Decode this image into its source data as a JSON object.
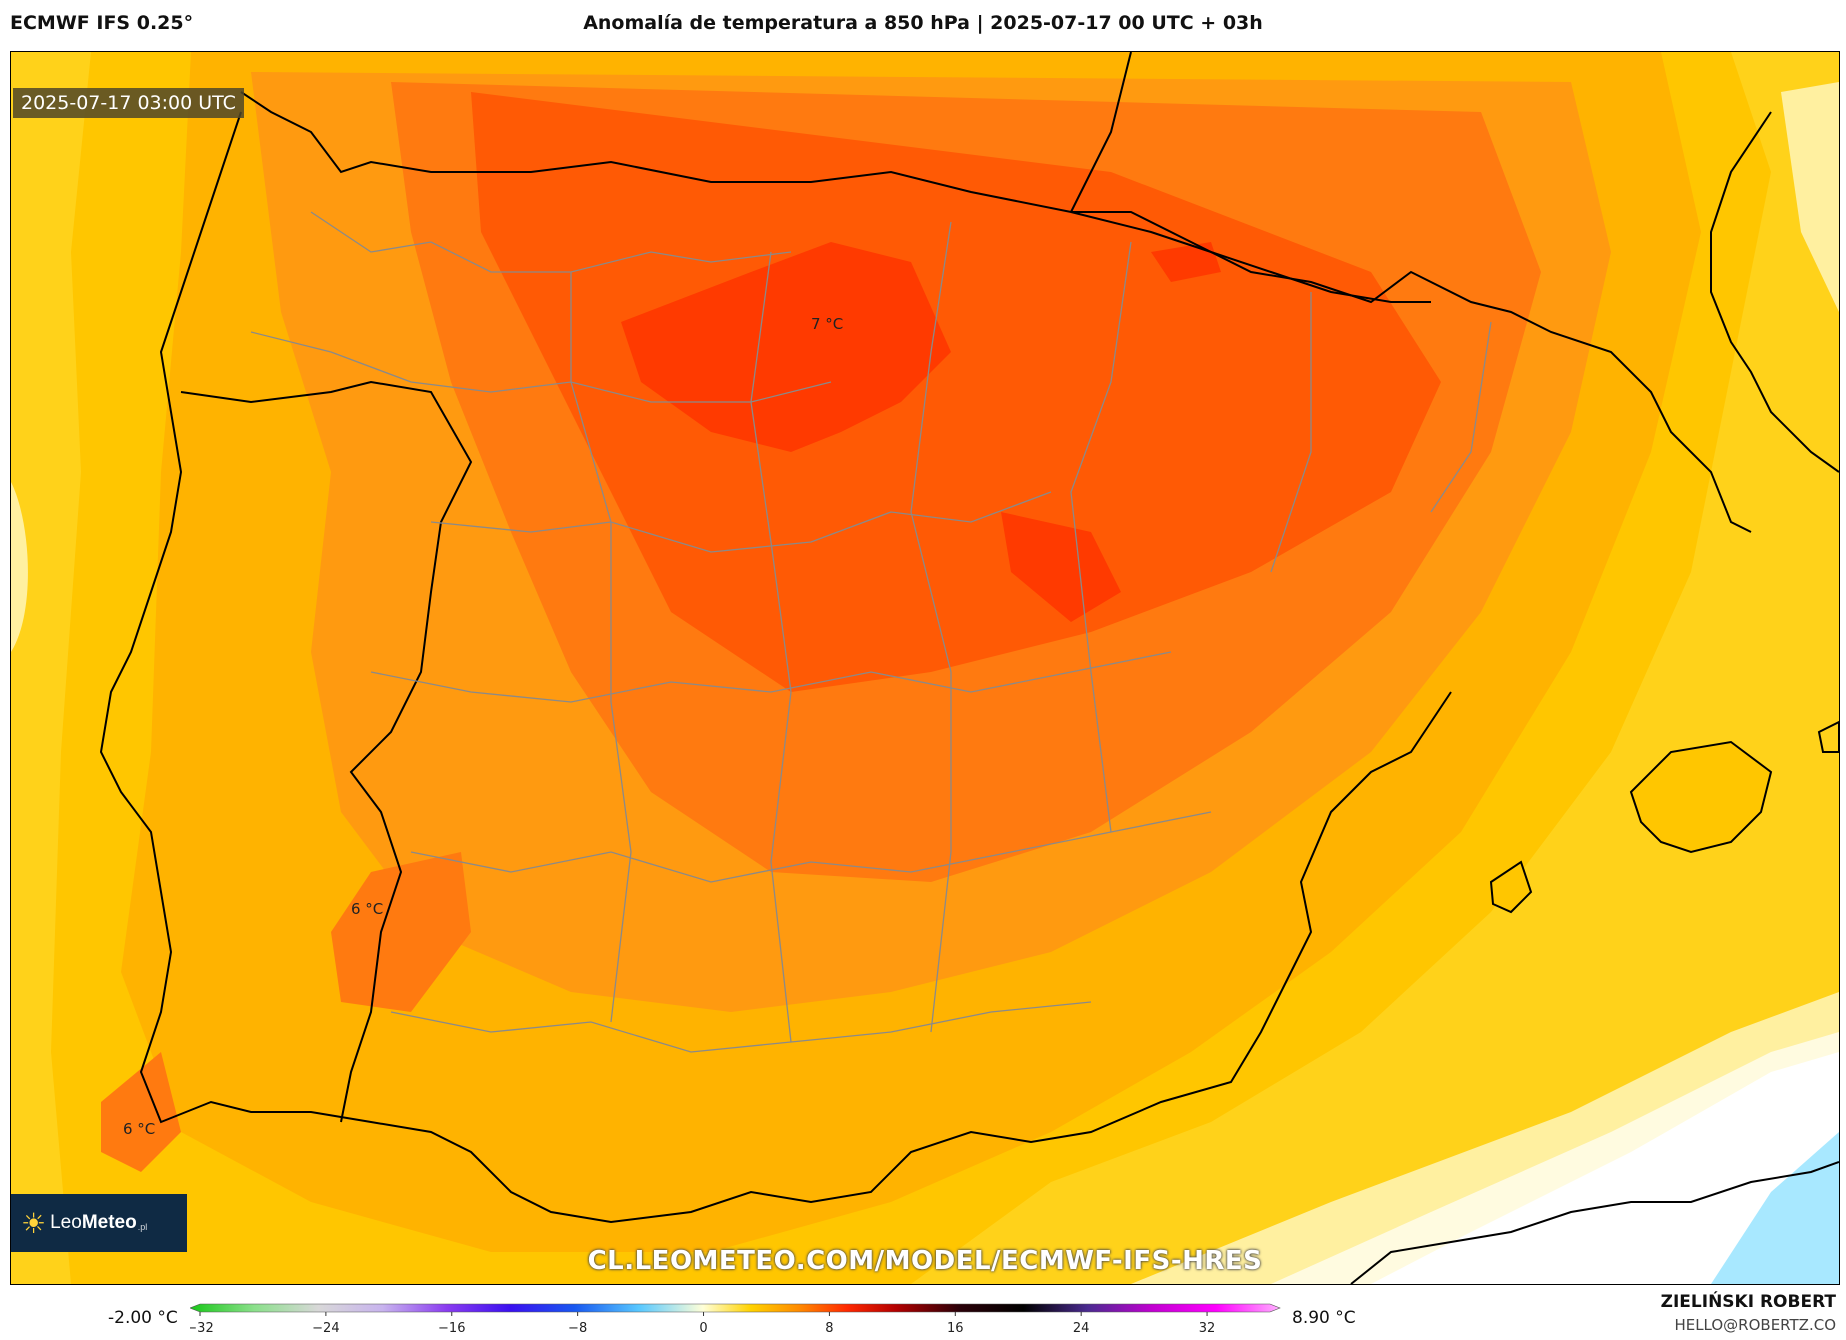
{
  "header": {
    "model": "ECMWF IFS 0.25°",
    "title": "Anomalía de temperatura a 850 hPa | 2025-07-17 00 UTC + 03h"
  },
  "map": {
    "valid_time": "2025-07-17 03:00 UTC",
    "contour_labels": [
      "7 °C",
      "6 °C",
      "6 °C"
    ],
    "watermark": "CL.LEOMETEO.COM/MODEL/ECMWF-IFS-HRES",
    "logo": {
      "name_light": "Leo",
      "name_bold": "Meteo",
      "tld": ".pl",
      "icon": "sun-icon"
    },
    "fill_colors": {
      "deep_red": "#ff3a00",
      "red_orange": "#ff5a05",
      "orange_red": "#ff7a10",
      "orange": "#ff9a10",
      "amber": "#ffb300",
      "gold": "#ffc600",
      "yellow": "#ffd21a",
      "light_yellow": "#fff0a0",
      "pale": "#fffbe0",
      "white": "#ffffff",
      "cyan": "#a8e8ff"
    }
  },
  "colorbar": {
    "min_label": "-2.00 °C",
    "max_label": "8.90 °C",
    "ticks": [
      "−32",
      "−24",
      "−16",
      "−8",
      "0",
      "8",
      "16",
      "24",
      "32"
    ],
    "tick_values": [
      -32,
      -24,
      -16,
      -8,
      0,
      8,
      16,
      24,
      32
    ],
    "range": [
      -32,
      36
    ],
    "stops": [
      {
        "v": -32,
        "c": "#18c818"
      },
      {
        "v": -28,
        "c": "#8be08b"
      },
      {
        "v": -24,
        "c": "#d8d8d8"
      },
      {
        "v": -20,
        "c": "#c8b4ee"
      },
      {
        "v": -16,
        "c": "#8a3cf0"
      },
      {
        "v": -12,
        "c": "#3a10f0"
      },
      {
        "v": -8,
        "c": "#1858f0"
      },
      {
        "v": -4,
        "c": "#58c8ff"
      },
      {
        "v": 0,
        "c": "#ffffd8"
      },
      {
        "v": 3,
        "c": "#ffd200"
      },
      {
        "v": 6,
        "c": "#ff8a00"
      },
      {
        "v": 9,
        "c": "#ff2800"
      },
      {
        "v": 12,
        "c": "#b40000"
      },
      {
        "v": 16,
        "c": "#2a0008"
      },
      {
        "v": 20,
        "c": "#000000"
      },
      {
        "v": 24,
        "c": "#4a2a90"
      },
      {
        "v": 28,
        "c": "#c000d0"
      },
      {
        "v": 32,
        "c": "#ff00ff"
      },
      {
        "v": 36,
        "c": "#ffb0ff"
      }
    ]
  },
  "footer": {
    "author": "ZIELIŃSKI ROBERT",
    "contact": "HELLO@ROBERTZ.CO"
  }
}
